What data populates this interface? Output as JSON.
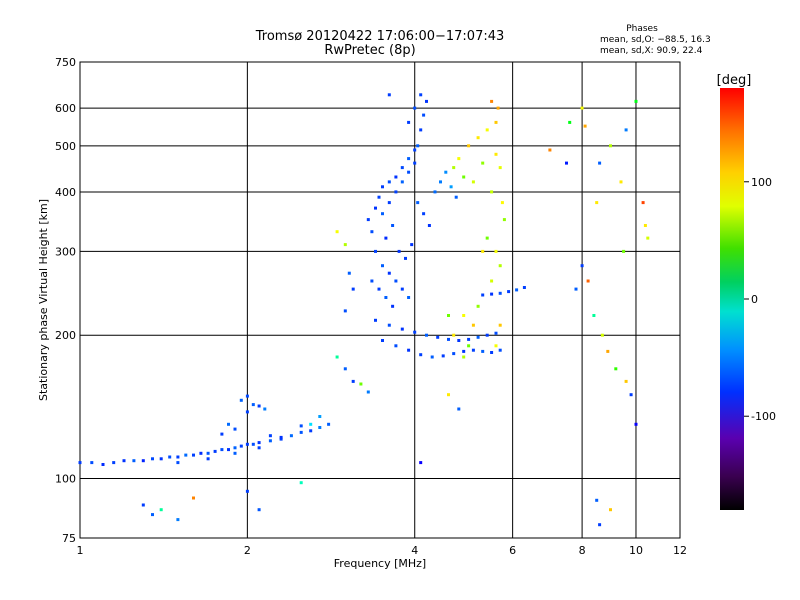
{
  "chart_data": {
    "type": "scatter",
    "title": "Tromsø 20120422 17:06:00−17:07:43",
    "subtitle": "RwPretec (8p)",
    "xlabel": "Frequency [MHz]",
    "ylabel": "Stationary phase Virtual Height [km]",
    "x_scale": "log",
    "y_scale": "log",
    "xlim": [
      1,
      12
    ],
    "ylim": [
      75,
      750
    ],
    "x_ticks": [
      1,
      2,
      4,
      6,
      8,
      10,
      12
    ],
    "y_ticks": [
      75,
      100,
      200,
      300,
      400,
      500,
      600,
      750
    ],
    "grid": true,
    "phases_info": {
      "title": "Phases",
      "line_o": "mean, sd,O: −88.5, 16.3",
      "line_x": "mean, sd,X: 90.9, 22.4"
    },
    "colorbar": {
      "label": "[deg]",
      "range": [
        -180,
        180
      ],
      "ticks": [
        100,
        0,
        -100
      ],
      "colormap": "rainbow"
    },
    "series": [
      {
        "points": [
          [
            1.0,
            108,
            -110
          ],
          [
            1.05,
            108,
            -105
          ],
          [
            1.1,
            107,
            -115
          ],
          [
            1.15,
            108,
            -108
          ],
          [
            1.2,
            109,
            -112
          ],
          [
            1.25,
            109,
            -100
          ],
          [
            1.3,
            109,
            -118
          ],
          [
            1.35,
            110,
            -106
          ],
          [
            1.4,
            110,
            -112
          ],
          [
            1.45,
            111,
            -104
          ],
          [
            1.5,
            111,
            -110
          ],
          [
            1.55,
            112,
            -96
          ],
          [
            1.6,
            112,
            -108
          ],
          [
            1.65,
            113,
            -115
          ],
          [
            1.7,
            113,
            -102
          ],
          [
            1.75,
            114,
            -110
          ],
          [
            1.8,
            115,
            -104
          ],
          [
            1.85,
            115,
            -112
          ],
          [
            1.9,
            116,
            -98
          ],
          [
            1.95,
            117,
            -108
          ],
          [
            2.0,
            118,
            -110
          ],
          [
            2.05,
            118,
            -104
          ],
          [
            2.1,
            119,
            -112
          ],
          [
            2.2,
            120,
            -100
          ],
          [
            2.3,
            121,
            -108
          ],
          [
            2.4,
            123,
            -95
          ],
          [
            2.5,
            125,
            -102
          ],
          [
            2.6,
            126,
            -110
          ],
          [
            2.7,
            128,
            -90
          ],
          [
            2.8,
            130,
            -100
          ],
          [
            1.5,
            108,
            -105
          ],
          [
            1.7,
            110,
            -110
          ],
          [
            1.9,
            113,
            -100
          ],
          [
            2.1,
            116,
            -108
          ],
          [
            2.3,
            122,
            -112
          ],
          [
            2.5,
            129,
            -104
          ],
          [
            2.0,
            138,
            -108
          ],
          [
            2.05,
            143,
            -100
          ],
          [
            2.1,
            142,
            -110
          ],
          [
            1.95,
            146,
            -98
          ],
          [
            2.0,
            149,
            -106
          ],
          [
            2.15,
            140,
            -90
          ],
          [
            1.9,
            127,
            -104
          ],
          [
            1.8,
            124,
            -110
          ],
          [
            1.85,
            130,
            -96
          ],
          [
            2.2,
            123,
            -108
          ]
        ]
      },
      {
        "points": [
          [
            1.3,
            88,
            -110
          ],
          [
            1.35,
            84,
            -100
          ],
          [
            1.4,
            86,
            -20
          ],
          [
            1.5,
            82,
            -90
          ],
          [
            2.0,
            94,
            -110
          ],
          [
            2.1,
            86,
            -102
          ],
          [
            2.5,
            98,
            -30
          ],
          [
            1.6,
            91,
            140
          ]
        ]
      },
      {
        "points": [
          [
            3.3,
            350,
            -110
          ],
          [
            3.35,
            330,
            -104
          ],
          [
            3.4,
            370,
            -112
          ],
          [
            3.45,
            390,
            -108
          ],
          [
            3.5,
            360,
            -100
          ],
          [
            3.55,
            320,
            -115
          ],
          [
            3.6,
            380,
            -110
          ],
          [
            3.65,
            340,
            -102
          ],
          [
            3.7,
            400,
            -108
          ],
          [
            3.75,
            300,
            -112
          ],
          [
            3.8,
            420,
            -98
          ],
          [
            3.85,
            290,
            -110
          ],
          [
            3.9,
            440,
            -104
          ],
          [
            3.95,
            310,
            -112
          ],
          [
            4.0,
            460,
            -108
          ],
          [
            4.05,
            500,
            -100
          ],
          [
            4.1,
            540,
            -110
          ],
          [
            4.15,
            580,
            -104
          ],
          [
            4.2,
            620,
            -112
          ],
          [
            4.1,
            640,
            -108
          ],
          [
            4.0,
            600,
            -104
          ],
          [
            3.9,
            560,
            -110
          ],
          [
            4.05,
            380,
            -100
          ],
          [
            4.15,
            360,
            -108
          ],
          [
            4.25,
            340,
            -112
          ],
          [
            4.35,
            400,
            -95
          ],
          [
            4.45,
            420,
            -90
          ],
          [
            4.55,
            440,
            -85
          ],
          [
            4.65,
            410,
            -80
          ],
          [
            4.75,
            390,
            -100
          ],
          [
            3.4,
            300,
            -108
          ],
          [
            3.5,
            280,
            -100
          ],
          [
            3.6,
            270,
            -112
          ],
          [
            3.7,
            260,
            -104
          ],
          [
            3.8,
            250,
            -110
          ],
          [
            3.9,
            240,
            -98
          ],
          [
            3.5,
            410,
            -110
          ],
          [
            3.6,
            420,
            -104
          ],
          [
            3.7,
            430,
            -112
          ],
          [
            3.8,
            450,
            -106
          ],
          [
            3.9,
            470,
            -100
          ],
          [
            4.0,
            490,
            -108
          ],
          [
            3.35,
            260,
            -104
          ],
          [
            3.45,
            250,
            -110
          ],
          [
            3.55,
            240,
            -100
          ],
          [
            3.65,
            230,
            -112
          ]
        ]
      },
      {
        "points": [
          [
            3.4,
            215,
            -110
          ],
          [
            3.6,
            210,
            -104
          ],
          [
            3.8,
            206,
            -112
          ],
          [
            4.0,
            203,
            -108
          ],
          [
            4.2,
            200,
            -100
          ],
          [
            4.4,
            198,
            -110
          ],
          [
            4.6,
            196,
            -104
          ],
          [
            4.8,
            195,
            -112
          ],
          [
            5.0,
            196,
            -108
          ],
          [
            5.2,
            198,
            -100
          ],
          [
            5.4,
            200,
            -110
          ],
          [
            5.6,
            202,
            -104
          ],
          [
            3.5,
            195,
            -110
          ],
          [
            3.7,
            190,
            -104
          ],
          [
            3.9,
            186,
            -112
          ],
          [
            4.1,
            182,
            -108
          ],
          [
            4.3,
            180,
            -100
          ],
          [
            4.5,
            181,
            -110
          ],
          [
            4.7,
            183,
            -104
          ],
          [
            4.9,
            185,
            -112
          ],
          [
            5.1,
            186,
            -108
          ],
          [
            5.3,
            185,
            -100
          ],
          [
            5.5,
            184,
            -110
          ],
          [
            5.7,
            186,
            -104
          ],
          [
            5.3,
            243,
            -108
          ],
          [
            5.5,
            244,
            -112
          ],
          [
            5.7,
            245,
            -104
          ],
          [
            5.9,
            247,
            -110
          ],
          [
            6.1,
            249,
            -100
          ],
          [
            6.3,
            252,
            -108
          ]
        ]
      },
      {
        "points": [
          [
            4.7,
            450,
            80
          ],
          [
            4.8,
            470,
            100
          ],
          [
            4.9,
            430,
            60
          ],
          [
            5.0,
            500,
            120
          ],
          [
            5.1,
            420,
            90
          ],
          [
            5.2,
            520,
            110
          ],
          [
            5.3,
            460,
            70
          ],
          [
            5.4,
            540,
            100
          ],
          [
            5.5,
            400,
            85
          ],
          [
            5.6,
            560,
            120
          ],
          [
            5.65,
            600,
            130
          ],
          [
            5.7,
            450,
            95
          ],
          [
            5.75,
            380,
            105
          ],
          [
            5.6,
            480,
            110
          ],
          [
            5.5,
            620,
            140
          ],
          [
            5.7,
            280,
            80
          ],
          [
            5.6,
            300,
            100
          ],
          [
            5.5,
            260,
            90
          ],
          [
            5.8,
            350,
            70
          ],
          [
            5.4,
            320,
            60
          ],
          [
            5.3,
            300,
            110
          ],
          [
            5.2,
            230,
            70
          ],
          [
            5.1,
            210,
            120
          ],
          [
            4.9,
            220,
            100
          ],
          [
            4.6,
            220,
            60
          ],
          [
            4.7,
            200,
            110
          ],
          [
            4.9,
            180,
            80
          ],
          [
            5.0,
            190,
            60
          ],
          [
            5.6,
            190,
            100
          ],
          [
            5.7,
            210,
            120
          ]
        ]
      },
      {
        "points": [
          [
            7.0,
            490,
            140
          ],
          [
            7.5,
            460,
            -120
          ],
          [
            7.6,
            560,
            20
          ],
          [
            8.0,
            600,
            100
          ],
          [
            8.5,
            380,
            110
          ],
          [
            8.6,
            460,
            -100
          ],
          [
            9.0,
            500,
            80
          ],
          [
            9.4,
            420,
            110
          ],
          [
            9.5,
            300,
            60
          ],
          [
            9.6,
            540,
            -90
          ],
          [
            10.0,
            620,
            20
          ],
          [
            10.3,
            380,
            160
          ],
          [
            10.4,
            340,
            110
          ],
          [
            10.5,
            320,
            90
          ],
          [
            8.0,
            280,
            -110
          ],
          [
            8.2,
            260,
            150
          ],
          [
            7.8,
            250,
            -100
          ],
          [
            8.4,
            220,
            -20
          ],
          [
            8.7,
            200,
            90
          ],
          [
            8.9,
            185,
            130
          ],
          [
            9.2,
            170,
            40
          ],
          [
            9.6,
            160,
            120
          ],
          [
            9.8,
            150,
            -110
          ],
          [
            10.0,
            130,
            -130
          ],
          [
            8.5,
            90,
            -100
          ],
          [
            8.6,
            80,
            -110
          ],
          [
            9.0,
            86,
            120
          ],
          [
            8.1,
            550,
            130
          ]
        ]
      },
      {
        "points": [
          [
            2.9,
            330,
            100
          ],
          [
            3.0,
            310,
            80
          ],
          [
            3.05,
            270,
            -100
          ],
          [
            3.1,
            250,
            -110
          ],
          [
            3.0,
            225,
            -104
          ],
          [
            2.9,
            180,
            -20
          ],
          [
            3.0,
            170,
            -100
          ],
          [
            3.1,
            160,
            -110
          ],
          [
            3.2,
            158,
            60
          ],
          [
            3.3,
            152,
            -90
          ],
          [
            4.1,
            108,
            -130
          ],
          [
            4.6,
            150,
            110
          ],
          [
            4.8,
            140,
            -100
          ],
          [
            3.6,
            640,
            -110
          ],
          [
            2.7,
            135,
            -80
          ],
          [
            2.6,
            130,
            -60
          ]
        ]
      }
    ]
  }
}
